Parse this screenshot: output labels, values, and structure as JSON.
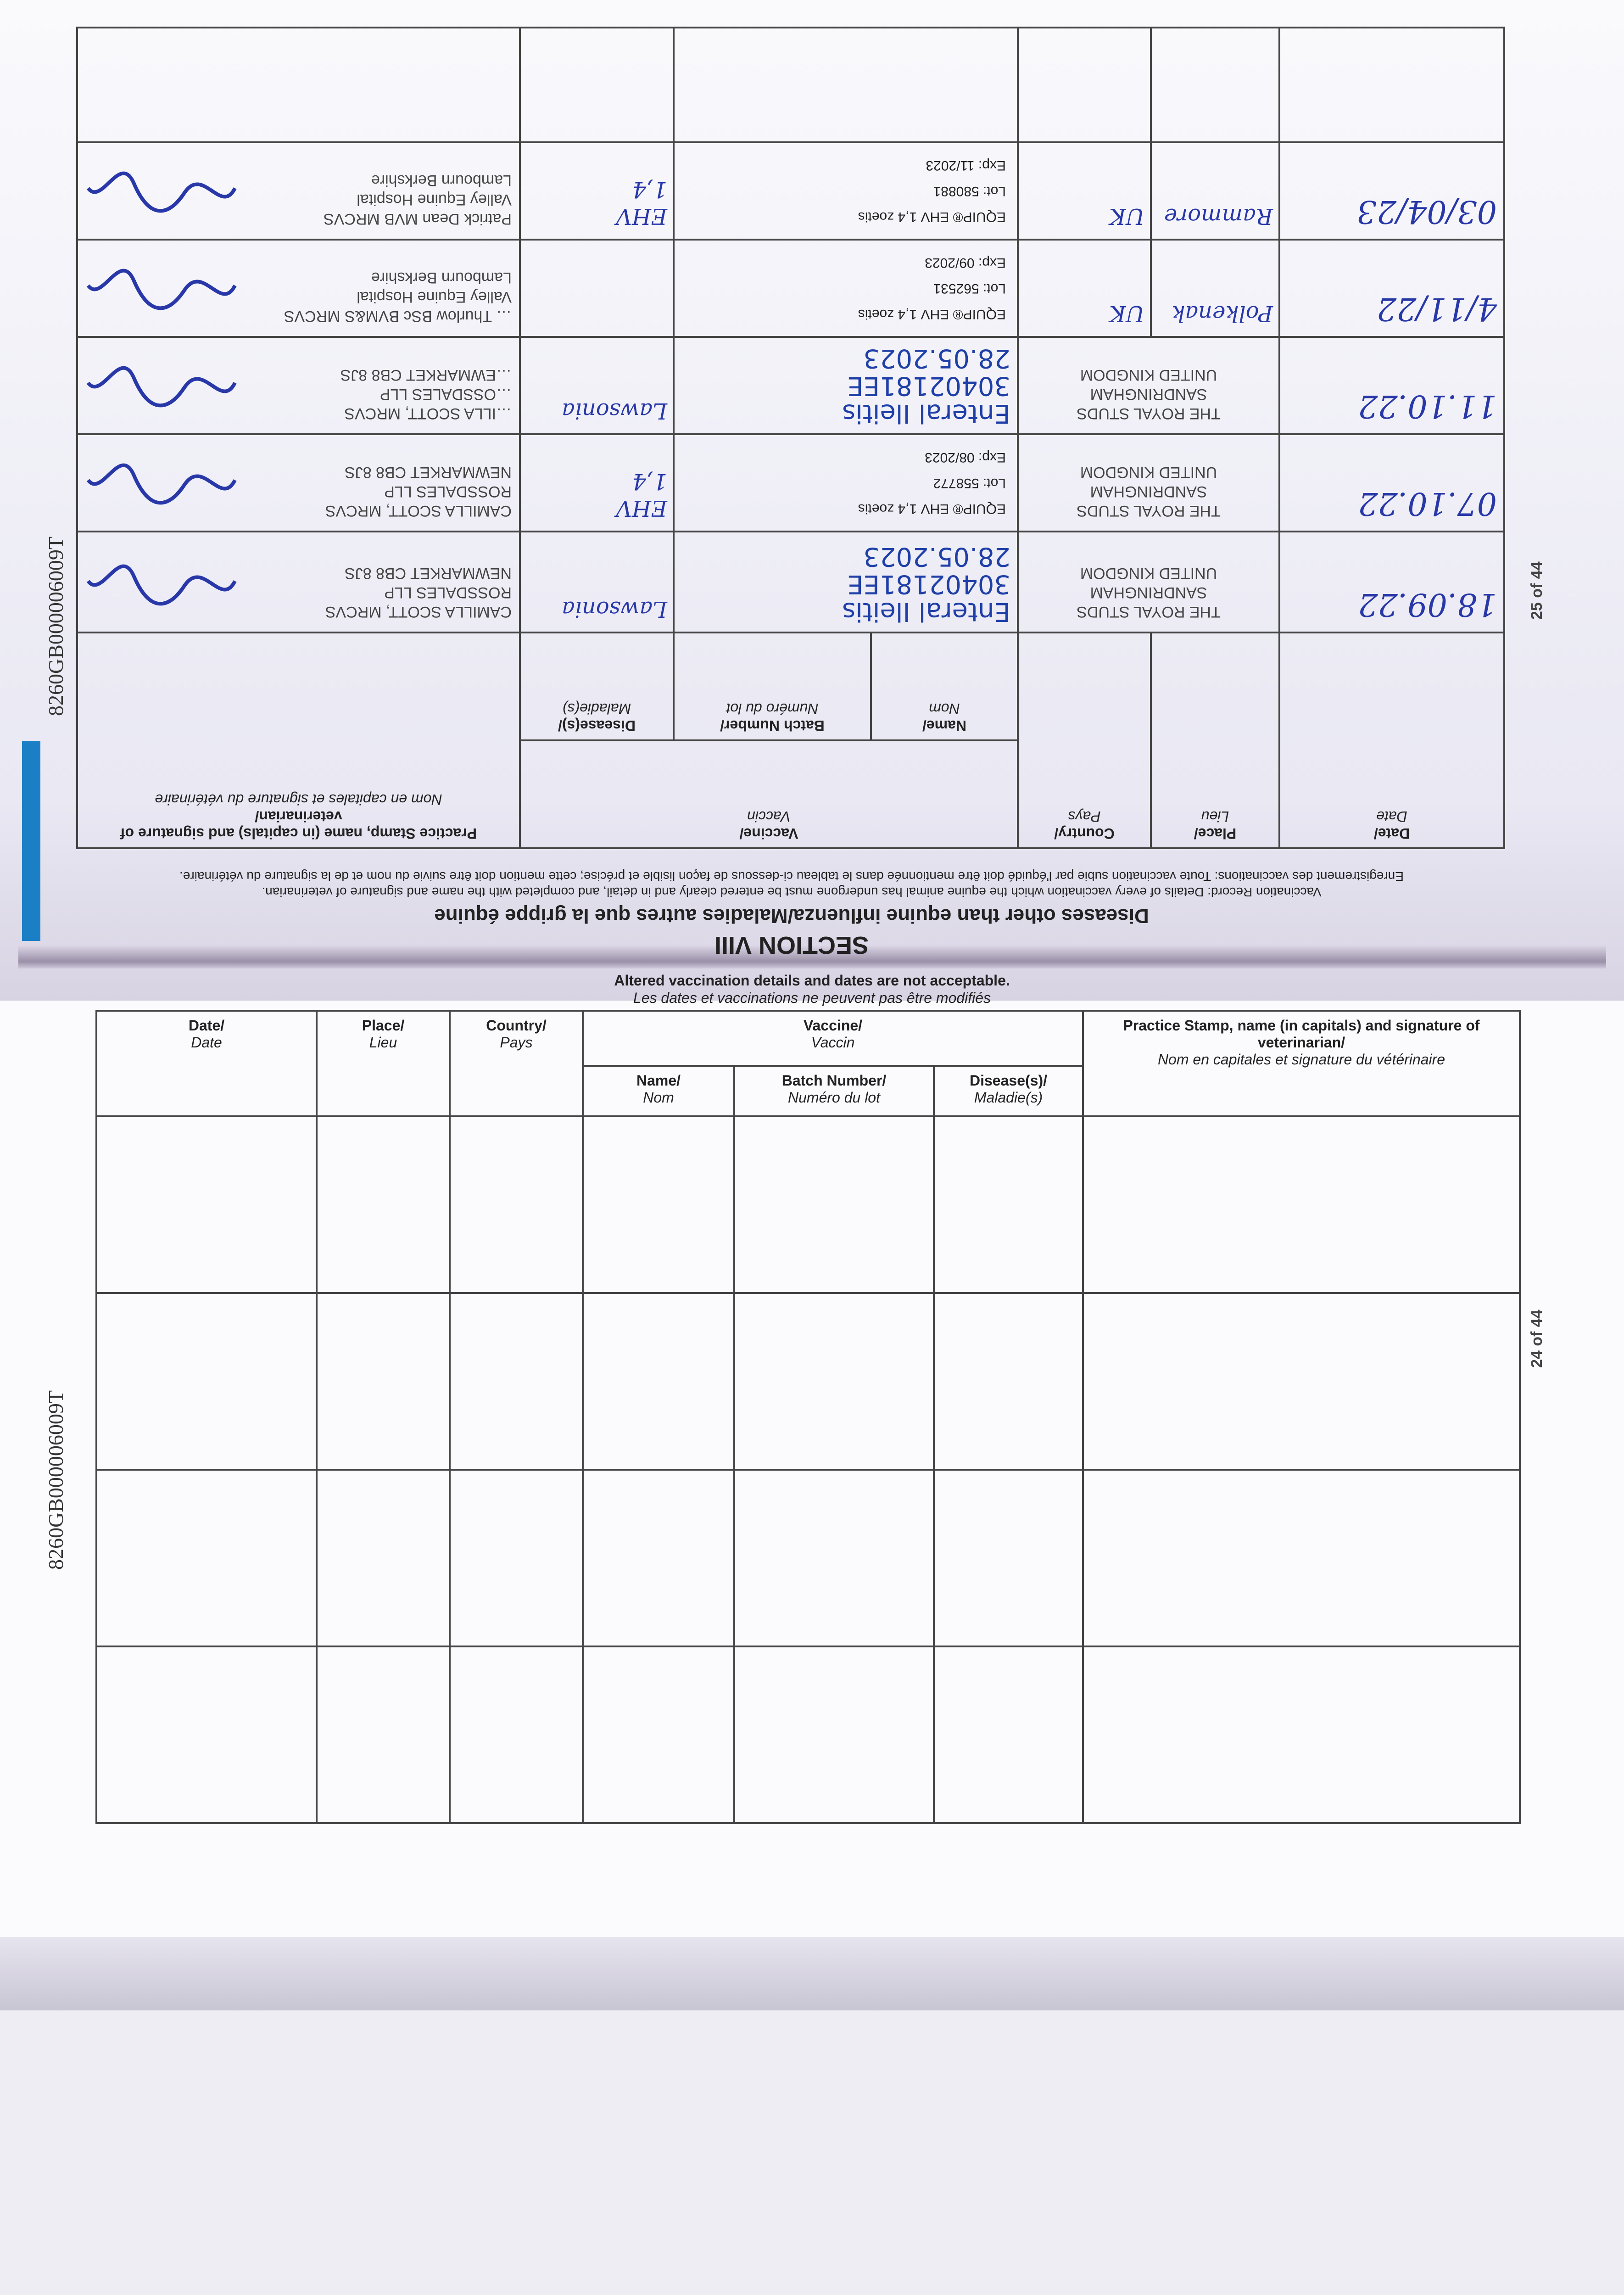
{
  "document": {
    "passport_number": "8260GB000006009T",
    "page_upper": "25 of 44",
    "page_lower": "24 of 44",
    "accent_color": "#1a7fc4",
    "ink_color": "#2838a8"
  },
  "upper": {
    "section": "SECTION VIII",
    "subtitle": "Diseases other than equine influenza/Maladies autres que la grippe équine",
    "description_en": "Vaccination Record: Details of every vaccination which the equine animal has undergone must be entered clearly and in detail, and completed with the name and signature of veterinarian.",
    "description_fr": "Enregistrement des vaccinations: Toute vaccination subie par l'équidé doit être mentionnée dans le tableau ci-dessous de façon lisible et précise; cette mention doit être suivie du nom et de la signature du vétérinaire.",
    "headers": {
      "date": "Date/",
      "date_fr": "Date",
      "place": "Place/",
      "place_fr": "Lieu",
      "country": "Country/",
      "country_fr": "Pays",
      "vaccine": "Vaccine/",
      "vaccine_fr": "Vaccin",
      "name": "Name/",
      "name_fr": "Nom",
      "batch": "Batch Number/",
      "batch_fr": "Numéro du lot",
      "disease": "Disease(s)/",
      "disease_fr": "Maladie(s)",
      "stamp": "Practice Stamp, name (in capitals) and signature of veterinarian/",
      "stamp_fr": "Nom en capitales et signature du vétérinaire"
    },
    "rows": [
      {
        "date": "18.09.22",
        "place": "THE ROYAL STUDS\nSANDRINGHAM\nUNITED KINGDOM",
        "country": "",
        "vaccine": "Enteral Ileitis\n30402181EE\n28.05.2023",
        "vaccine_handwritten": true,
        "disease": "Lawsonia",
        "stamp": "CAMILLA SCOTT, MRCVS\nROSSDALES LLP\nNEWMARKET CB8 8JS"
      },
      {
        "date": "07.10.22",
        "place": "THE ROYAL STUDS\nSANDRINGHAM\nUNITED KINGDOM",
        "country": "",
        "vaccine": "EQUIP® EHV 1,4 zoetis\nLot:   558772\nExp:   08/2023",
        "vaccine_handwritten": false,
        "disease": "EHV\n1,4",
        "stamp": "CAMILLA SCOTT, MRCVS\nROSSDALES LLP\nNEWMARKET CB8 8JS"
      },
      {
        "date": "11.10.22",
        "place": "THE ROYAL STUDS\nSANDRINGHAM\nUNITED KINGDOM",
        "country": "",
        "vaccine": "Enteral Ileitis\n30402181EE\n28.05.2023",
        "vaccine_handwritten": true,
        "disease": "Lawsonia",
        "stamp": "…ILLA SCOTT, MRCVS\n…OSSDALES LLP\n…EWMARKET CB8 8JS"
      },
      {
        "date": "4/11/22",
        "place": "Polkenak",
        "country": "UK",
        "vaccine": "EQUIP® EHV 1,4 zoetis\nLot:   562531\nExp:   09/2023",
        "vaccine_handwritten": false,
        "disease": "",
        "stamp": "… Thurlow BSc BVM&S MRCVS\nValley Equine Hospital\nLambourn Berkshire"
      },
      {
        "date": "03/04/23",
        "place": "Rammore",
        "country": "UK",
        "vaccine": "EQUIP® EHV 1,4 zoetis\nLot:   580881\nExp:   11/2023",
        "vaccine_handwritten": false,
        "disease": "EHV\n1,4",
        "stamp": "Patrick Dean MVB MRCVS\nValley Equine Hospital\nLambourn Berkshire"
      },
      {
        "date": "",
        "place": "",
        "country": "",
        "vaccine": "",
        "vaccine_handwritten": false,
        "disease": "",
        "stamp": ""
      }
    ]
  },
  "lower": {
    "notice_en": "Altered vaccination details and dates are not acceptable.",
    "notice_fr": "Les dates et vaccinations ne peuvent pas être modifiés",
    "empty_rows": 4
  }
}
